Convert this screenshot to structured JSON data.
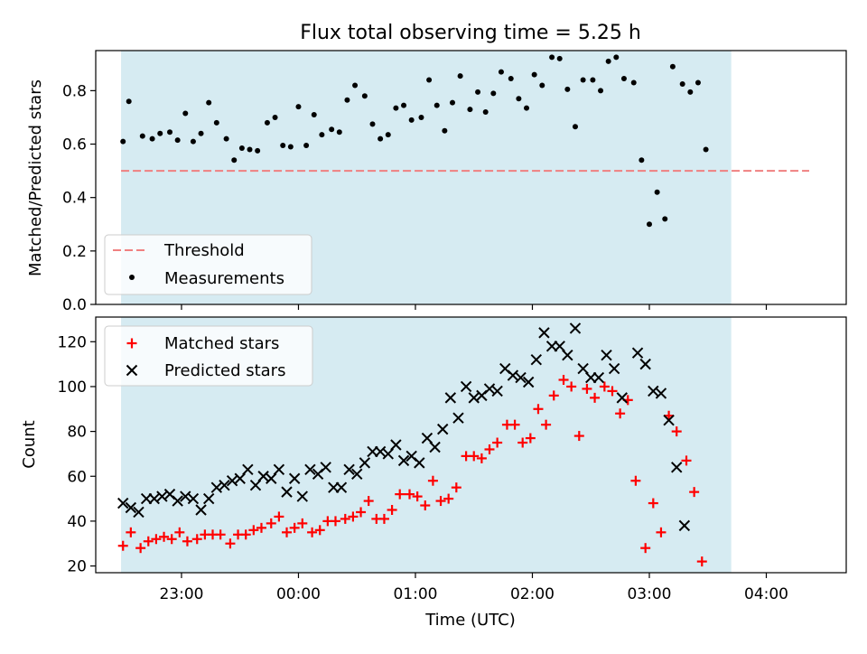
{
  "title": "Flux total observing time = 5.25 h",
  "colors": {
    "shade": "#add8e6",
    "threshold": "#f08080",
    "measurement": "#000000",
    "matched": "#ff0000",
    "predicted": "#000000"
  },
  "chart_data": [
    {
      "type": "scatter",
      "ylabel": "Matched/Predicted stars",
      "ylim": [
        0,
        0.95
      ],
      "yticks": [
        "0.0",
        "0.2",
        "0.4",
        "0.6",
        "0.8"
      ],
      "x_axis": "shared with bottom panel (Time UTC)",
      "shaded_interval": {
        "start": "22:29",
        "end": "03:42",
        "color": "lightblue"
      },
      "threshold": {
        "label": "Threshold",
        "value": 0.5,
        "x_range": [
          "22:29",
          "04:22"
        ]
      },
      "legend": {
        "position": "lower-left",
        "entries": [
          "Threshold",
          "Measurements"
        ]
      },
      "series": [
        {
          "name": "Measurements",
          "marker": "dot",
          "points": [
            [
              "22:30",
              0.61
            ],
            [
              "22:33",
              0.76
            ],
            [
              "22:40",
              0.63
            ],
            [
              "22:45",
              0.62
            ],
            [
              "22:49",
              0.64
            ],
            [
              "22:54",
              0.645
            ],
            [
              "22:58",
              0.615
            ],
            [
              "23:02",
              0.715
            ],
            [
              "23:06",
              0.61
            ],
            [
              "23:10",
              0.64
            ],
            [
              "23:14",
              0.755
            ],
            [
              "23:18",
              0.68
            ],
            [
              "23:23",
              0.62
            ],
            [
              "23:27",
              0.54
            ],
            [
              "23:31",
              0.585
            ],
            [
              "23:35",
              0.58
            ],
            [
              "23:39",
              0.575
            ],
            [
              "23:44",
              0.68
            ],
            [
              "23:48",
              0.7
            ],
            [
              "23:52",
              0.595
            ],
            [
              "23:56",
              0.59
            ],
            [
              "00:00",
              0.74
            ],
            [
              "00:04",
              0.595
            ],
            [
              "00:08",
              0.71
            ],
            [
              "00:12",
              0.635
            ],
            [
              "00:17",
              0.655
            ],
            [
              "00:21",
              0.645
            ],
            [
              "00:25",
              0.765
            ],
            [
              "00:29",
              0.82
            ],
            [
              "00:34",
              0.78
            ],
            [
              "00:38",
              0.675
            ],
            [
              "00:42",
              0.62
            ],
            [
              "00:46",
              0.635
            ],
            [
              "00:50",
              0.735
            ],
            [
              "00:54",
              0.745
            ],
            [
              "00:58",
              0.69
            ],
            [
              "01:03",
              0.7
            ],
            [
              "01:07",
              0.84
            ],
            [
              "01:11",
              0.745
            ],
            [
              "01:15",
              0.65
            ],
            [
              "01:19",
              0.755
            ],
            [
              "01:23",
              0.855
            ],
            [
              "01:28",
              0.73
            ],
            [
              "01:32",
              0.795
            ],
            [
              "01:36",
              0.72
            ],
            [
              "01:40",
              0.79
            ],
            [
              "01:44",
              0.87
            ],
            [
              "01:49",
              0.845
            ],
            [
              "01:53",
              0.77
            ],
            [
              "01:57",
              0.735
            ],
            [
              "02:01",
              0.86
            ],
            [
              "02:05",
              0.82
            ],
            [
              "02:10",
              0.925
            ],
            [
              "02:14",
              0.92
            ],
            [
              "02:18",
              0.805
            ],
            [
              "02:22",
              0.665
            ],
            [
              "02:26",
              0.84
            ],
            [
              "02:31",
              0.84
            ],
            [
              "02:35",
              0.8
            ],
            [
              "02:39",
              0.91
            ],
            [
              "02:43",
              0.925
            ],
            [
              "02:47",
              0.845
            ],
            [
              "02:52",
              0.83
            ],
            [
              "02:56",
              0.54
            ],
            [
              "03:00",
              0.3
            ],
            [
              "03:04",
              0.42
            ],
            [
              "03:08",
              0.32
            ],
            [
              "03:12",
              0.89
            ],
            [
              "03:17",
              0.825
            ],
            [
              "03:21",
              0.795
            ],
            [
              "03:25",
              0.83
            ],
            [
              "03:29",
              0.58
            ]
          ]
        }
      ]
    },
    {
      "type": "scatter",
      "xlabel": "Time (UTC)",
      "ylabel": "Count",
      "xlim": [
        "22:16",
        "04:41"
      ],
      "ylim": [
        17,
        131
      ],
      "xticks": [
        "23:00",
        "00:00",
        "01:00",
        "02:00",
        "03:00",
        "04:00"
      ],
      "yticks": [
        "20",
        "40",
        "60",
        "80",
        "100",
        "120"
      ],
      "shaded_interval": {
        "start": "22:29",
        "end": "03:42",
        "color": "lightblue"
      },
      "legend": {
        "position": "top-left",
        "entries": [
          "Matched stars",
          "Predicted stars"
        ]
      },
      "series": [
        {
          "name": "Matched stars",
          "marker": "plus",
          "points": [
            [
              "22:30",
              29
            ],
            [
              "22:34",
              35
            ],
            [
              "22:39",
              28
            ],
            [
              "22:43",
              31
            ],
            [
              "22:47",
              32
            ],
            [
              "22:51",
              33
            ],
            [
              "22:55",
              32
            ],
            [
              "22:59",
              35
            ],
            [
              "23:03",
              31
            ],
            [
              "23:08",
              32
            ],
            [
              "23:12",
              34
            ],
            [
              "23:16",
              34
            ],
            [
              "23:20",
              34
            ],
            [
              "23:25",
              30
            ],
            [
              "23:29",
              34
            ],
            [
              "23:33",
              34
            ],
            [
              "23:37",
              36
            ],
            [
              "23:41",
              37
            ],
            [
              "23:46",
              39
            ],
            [
              "23:50",
              42
            ],
            [
              "23:54",
              35
            ],
            [
              "23:58",
              37
            ],
            [
              "00:02",
              39
            ],
            [
              "00:07",
              35
            ],
            [
              "00:11",
              36
            ],
            [
              "00:15",
              40
            ],
            [
              "00:19",
              40
            ],
            [
              "00:24",
              41
            ],
            [
              "00:28",
              42
            ],
            [
              "00:32",
              44
            ],
            [
              "00:36",
              49
            ],
            [
              "00:40",
              41
            ],
            [
              "00:44",
              41
            ],
            [
              "00:48",
              45
            ],
            [
              "00:52",
              52
            ],
            [
              "00:57",
              52
            ],
            [
              "01:01",
              51
            ],
            [
              "01:05",
              47
            ],
            [
              "01:09",
              58
            ],
            [
              "01:13",
              49
            ],
            [
              "01:17",
              50
            ],
            [
              "01:21",
              55
            ],
            [
              "01:26",
              69
            ],
            [
              "01:30",
              69
            ],
            [
              "01:34",
              68
            ],
            [
              "01:38",
              72
            ],
            [
              "01:42",
              75
            ],
            [
              "01:47",
              83
            ],
            [
              "01:51",
              83
            ],
            [
              "01:55",
              75
            ],
            [
              "01:59",
              77
            ],
            [
              "02:03",
              90
            ],
            [
              "02:07",
              83
            ],
            [
              "02:11",
              96
            ],
            [
              "02:16",
              103
            ],
            [
              "02:20",
              100
            ],
            [
              "02:24",
              78
            ],
            [
              "02:28",
              99
            ],
            [
              "02:32",
              95
            ],
            [
              "02:37",
              100
            ],
            [
              "02:41",
              98
            ],
            [
              "02:45",
              88
            ],
            [
              "02:49",
              94
            ],
            [
              "02:53",
              58
            ],
            [
              "02:58",
              28
            ],
            [
              "03:02",
              48
            ],
            [
              "03:06",
              35
            ],
            [
              "03:10",
              87
            ],
            [
              "03:14",
              80
            ],
            [
              "03:19",
              67
            ],
            [
              "03:23",
              53
            ],
            [
              "03:27",
              22
            ]
          ]
        },
        {
          "name": "Predicted stars",
          "marker": "x",
          "points": [
            [
              "22:30",
              48
            ],
            [
              "22:34",
              46
            ],
            [
              "22:38",
              44
            ],
            [
              "22:42",
              50
            ],
            [
              "22:46",
              50
            ],
            [
              "22:50",
              51
            ],
            [
              "22:54",
              52
            ],
            [
              "22:58",
              49
            ],
            [
              "23:02",
              51
            ],
            [
              "23:06",
              50
            ],
            [
              "23:10",
              45
            ],
            [
              "23:14",
              50
            ],
            [
              "23:18",
              55
            ],
            [
              "23:22",
              56
            ],
            [
              "23:26",
              58
            ],
            [
              "23:30",
              59
            ],
            [
              "23:34",
              63
            ],
            [
              "23:38",
              56
            ],
            [
              "23:42",
              60
            ],
            [
              "23:46",
              59
            ],
            [
              "23:50",
              63
            ],
            [
              "23:54",
              53
            ],
            [
              "23:58",
              59
            ],
            [
              "00:02",
              51
            ],
            [
              "00:06",
              63
            ],
            [
              "00:10",
              61
            ],
            [
              "00:14",
              64
            ],
            [
              "00:18",
              55
            ],
            [
              "00:22",
              55
            ],
            [
              "00:26",
              63
            ],
            [
              "00:30",
              61
            ],
            [
              "00:34",
              66
            ],
            [
              "00:38",
              71
            ],
            [
              "00:42",
              71
            ],
            [
              "00:46",
              70
            ],
            [
              "00:50",
              74
            ],
            [
              "00:54",
              67
            ],
            [
              "00:58",
              69
            ],
            [
              "01:02",
              66
            ],
            [
              "01:06",
              77
            ],
            [
              "01:10",
              73
            ],
            [
              "01:14",
              81
            ],
            [
              "01:18",
              95
            ],
            [
              "01:22",
              86
            ],
            [
              "01:26",
              100
            ],
            [
              "01:30",
              95
            ],
            [
              "01:34",
              96
            ],
            [
              "01:38",
              99
            ],
            [
              "01:42",
              98
            ],
            [
              "01:46",
              108
            ],
            [
              "01:50",
              105
            ],
            [
              "01:54",
              104
            ],
            [
              "01:58",
              102
            ],
            [
              "02:02",
              112
            ],
            [
              "02:06",
              124
            ],
            [
              "02:10",
              118
            ],
            [
              "02:14",
              118
            ],
            [
              "02:18",
              114
            ],
            [
              "02:22",
              126
            ],
            [
              "02:26",
              108
            ],
            [
              "02:30",
              104
            ],
            [
              "02:34",
              104
            ],
            [
              "02:38",
              114
            ],
            [
              "02:42",
              108
            ],
            [
              "02:46",
              95
            ],
            [
              "02:54",
              115
            ],
            [
              "02:58",
              110
            ],
            [
              "03:02",
              98
            ],
            [
              "03:06",
              97
            ],
            [
              "03:10",
              85
            ],
            [
              "03:14",
              64
            ],
            [
              "03:18",
              38
            ]
          ]
        }
      ]
    }
  ]
}
